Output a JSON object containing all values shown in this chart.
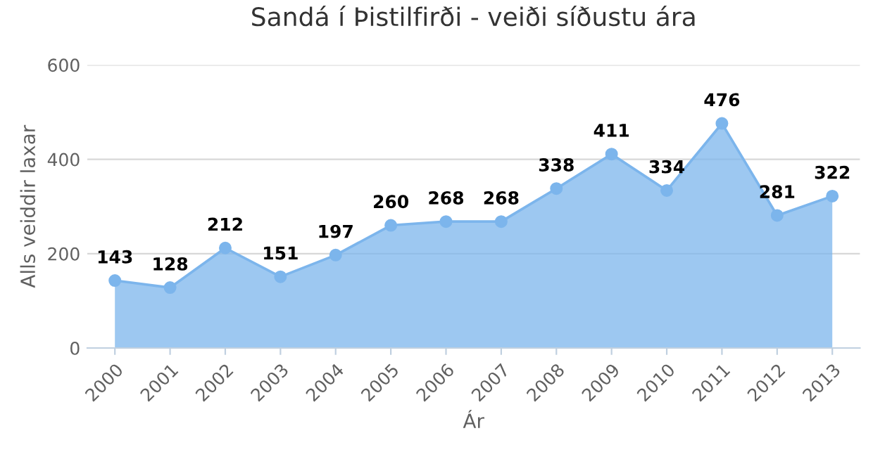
{
  "chart_data": {
    "type": "area",
    "title": "Sandá í Þistilfirði - veiði síðustu ára",
    "xlabel": "Ár",
    "ylabel": "Alls veiddir laxar",
    "categories": [
      "2000",
      "2001",
      "2002",
      "2003",
      "2004",
      "2005",
      "2006",
      "2007",
      "2008",
      "2009",
      "2010",
      "2011",
      "2012",
      "2013"
    ],
    "series": [
      {
        "color": "#7cb5ec",
        "values": [
          143,
          128,
          212,
          151,
          197,
          260,
          268,
          268,
          338,
          411,
          334,
          476,
          281,
          322
        ]
      }
    ],
    "ylim": [
      0,
      600
    ],
    "yticks": [
      0,
      200,
      400,
      600
    ],
    "grid": "y",
    "data_labels": true,
    "marker": "circle",
    "line_style": "solid"
  }
}
